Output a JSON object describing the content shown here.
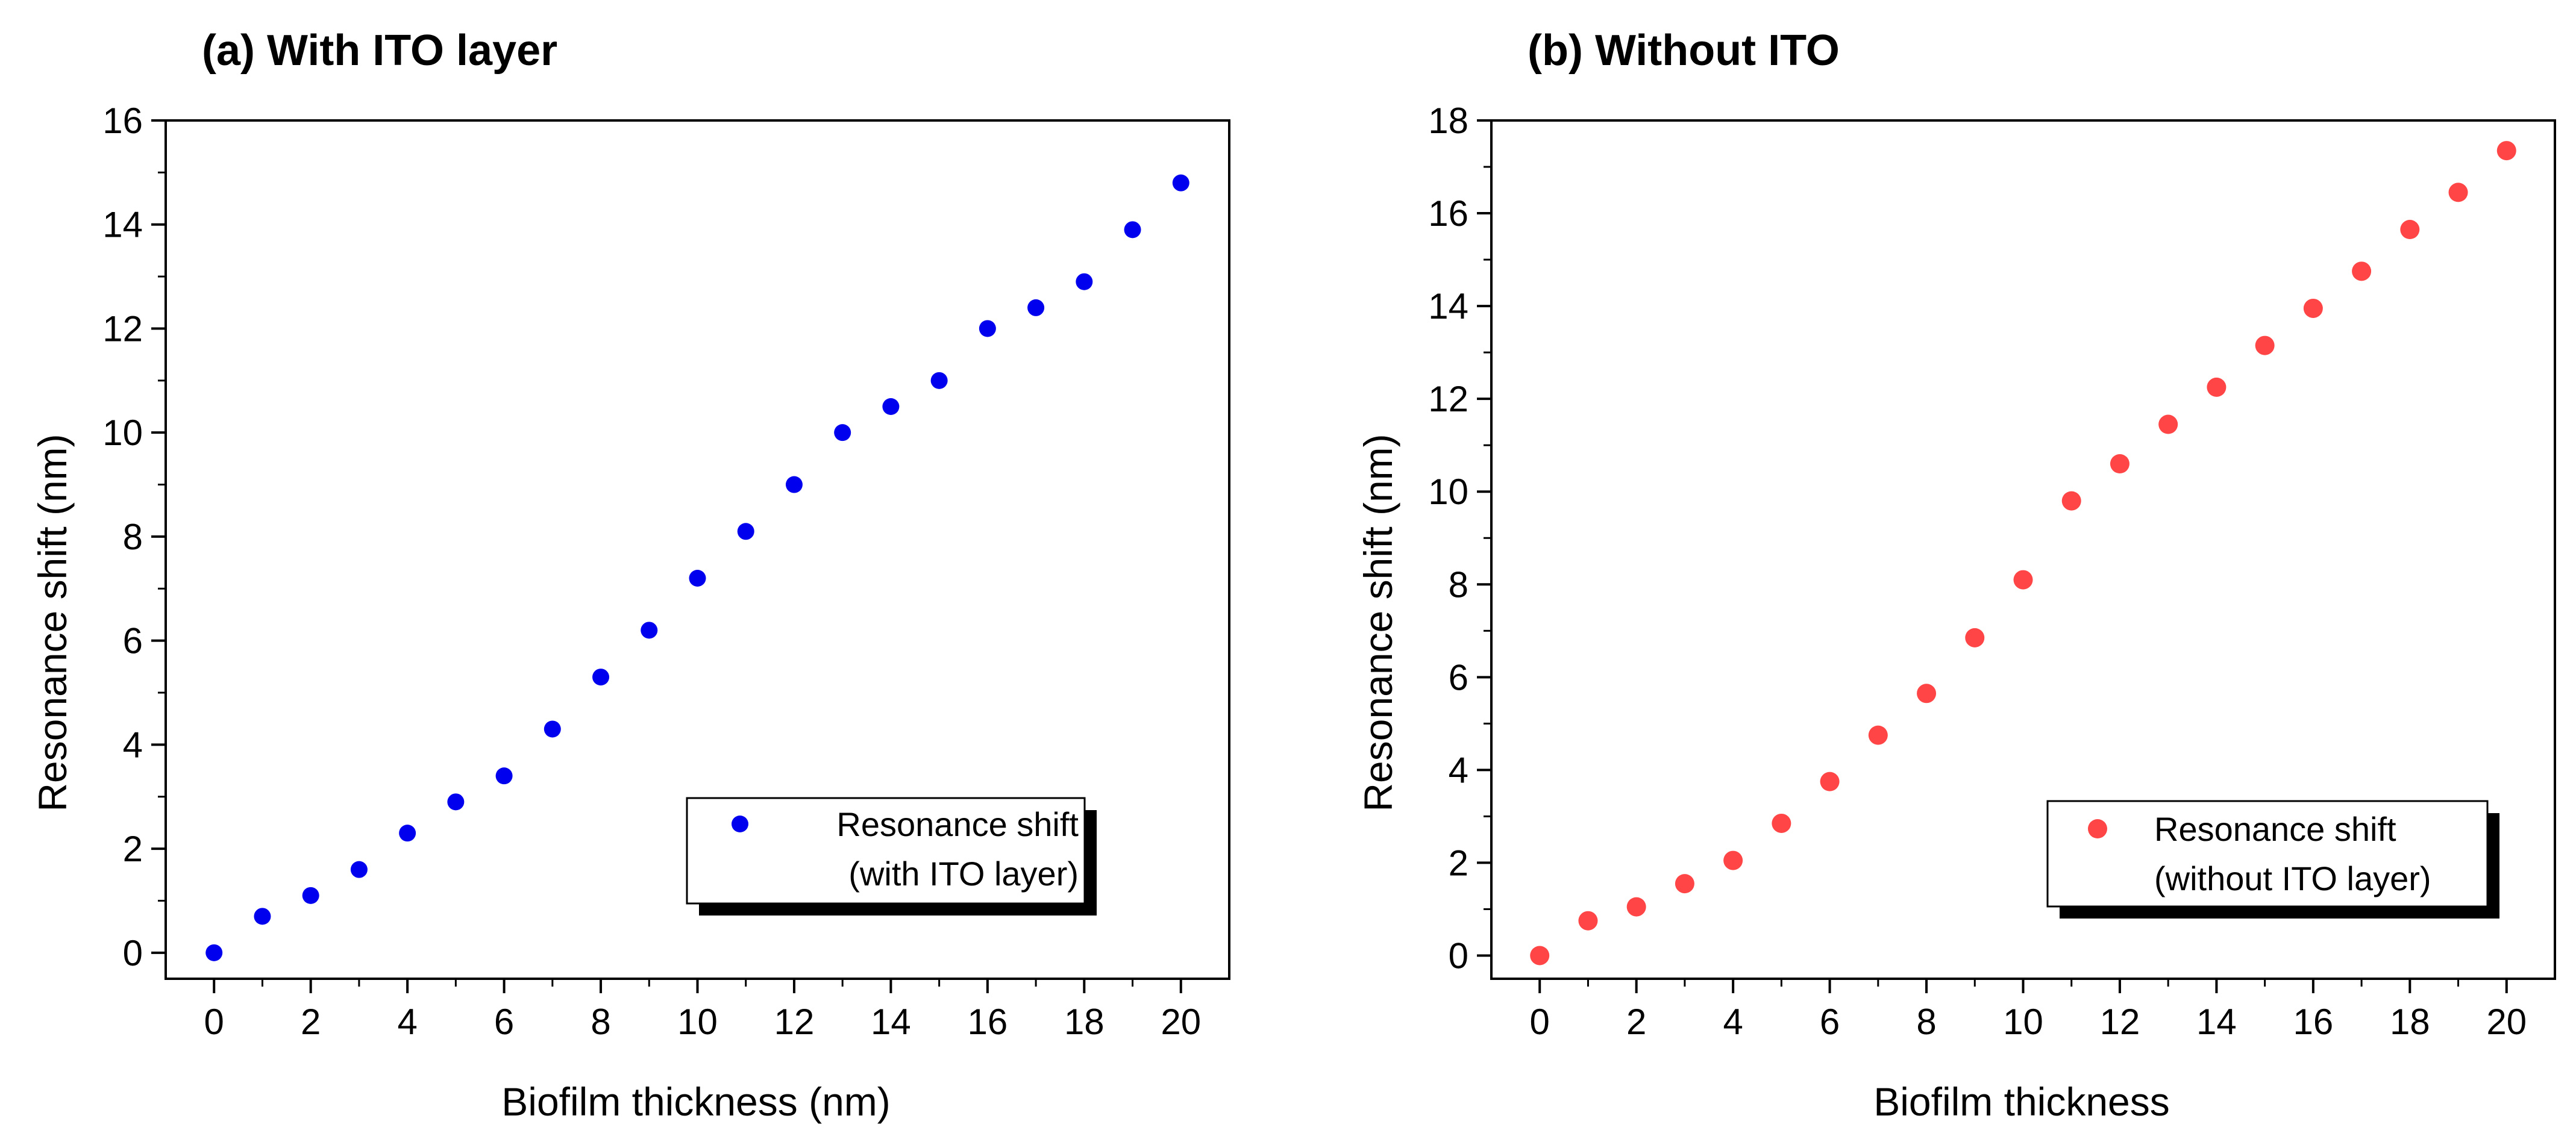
{
  "chart_data": [
    {
      "type": "scatter",
      "panel_title": "(a) With ITO layer",
      "xlabel": "Biofilm thickness (nm)",
      "ylabel": "Resonance shift (nm)",
      "xlim": [
        -1,
        21
      ],
      "ylim": [
        -0.5,
        16
      ],
      "xticks": [
        0,
        2,
        4,
        6,
        8,
        10,
        12,
        14,
        16,
        18,
        20
      ],
      "yticks": [
        0,
        2,
        4,
        6,
        8,
        10,
        12,
        14,
        16
      ],
      "series": [
        {
          "name": "Resonance shift (with ITO layer)",
          "legend_lines": [
            "Resonance shift",
            "(with ITO layer)"
          ],
          "color": "#0000ee",
          "x": [
            0,
            1,
            2,
            3,
            4,
            5,
            6,
            7,
            8,
            9,
            10,
            11,
            12,
            13,
            14,
            15,
            16,
            17,
            18,
            19,
            20
          ],
          "y": [
            0,
            0.7,
            1.1,
            1.6,
            2.3,
            2.9,
            3.4,
            4.3,
            5.3,
            6.2,
            7.2,
            8.1,
            9.0,
            10.0,
            10.5,
            11.0,
            12.0,
            12.4,
            12.9,
            13.9,
            14.8
          ]
        }
      ],
      "legend_position": "bottom-right"
    },
    {
      "type": "scatter",
      "panel_title": "(b) Without ITO",
      "xlabel": "Biofilm thickness",
      "ylabel": "Resonance shift (nm)",
      "xlim": [
        -1,
        21
      ],
      "ylim": [
        -0.5,
        18
      ],
      "xticks": [
        0,
        2,
        4,
        6,
        8,
        10,
        12,
        14,
        16,
        18,
        20
      ],
      "yticks": [
        0,
        2,
        4,
        6,
        8,
        10,
        12,
        14,
        16,
        18
      ],
      "series": [
        {
          "name": "Resonance shift (without ITO layer)",
          "legend_lines": [
            "Resonance shift",
            "(without ITO layer)"
          ],
          "color": "#ff4545",
          "x": [
            0,
            1,
            2,
            3,
            4,
            5,
            6,
            7,
            8,
            9,
            10,
            11,
            12,
            13,
            14,
            15,
            16,
            17,
            18,
            19,
            20
          ],
          "y": [
            0,
            0.75,
            1.05,
            1.55,
            2.05,
            2.85,
            3.75,
            4.75,
            5.65,
            6.85,
            8.1,
            9.8,
            10.6,
            11.45,
            12.25,
            13.15,
            13.95,
            14.75,
            15.65,
            16.45,
            17.35
          ]
        }
      ],
      "legend_position": "bottom-right"
    }
  ]
}
